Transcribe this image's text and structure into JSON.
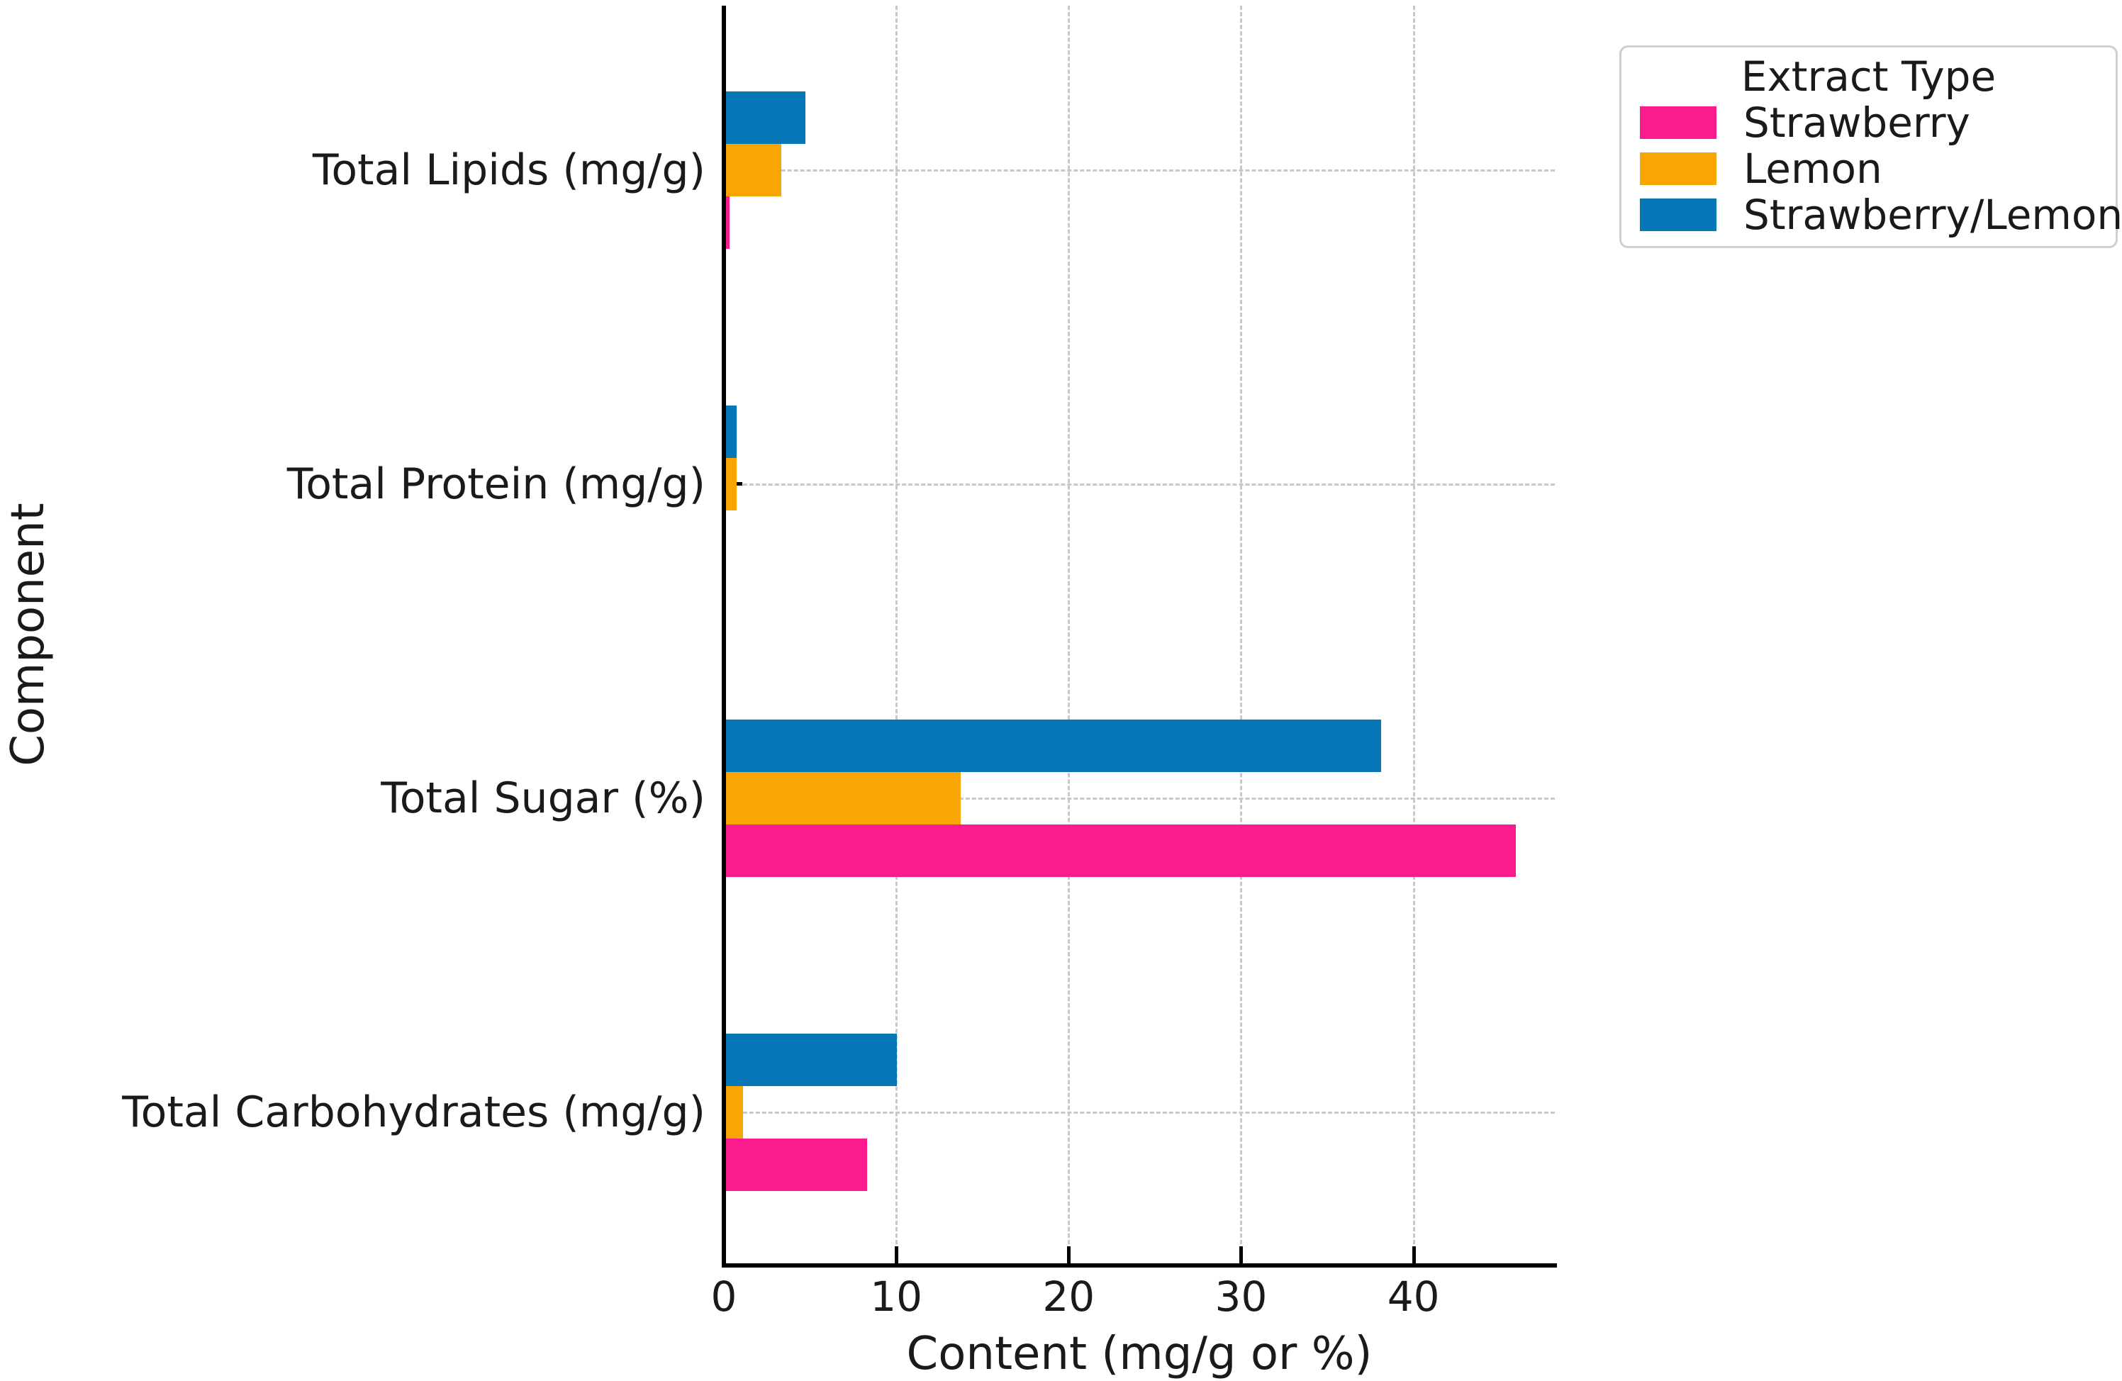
{
  "chart_data": {
    "type": "bar",
    "orientation": "horizontal",
    "title": "",
    "xlabel": "Content (mg/g or %)",
    "ylabel": "Component",
    "categories": [
      "Total Lipids (mg/g)",
      "Total Protein (mg/g)",
      "Total Sugar (%)",
      "Total Carbohydrates (mg/g)"
    ],
    "series": [
      {
        "name": "Strawberry",
        "color": "#FB1B8E",
        "values": [
          0.2,
          0.0,
          45.8,
          8.2
        ]
      },
      {
        "name": "Lemon",
        "color": "#F7A606",
        "values": [
          3.2,
          0.6,
          13.6,
          1.0
        ]
      },
      {
        "name": "Strawberry/Lemon",
        "color": "#0877B8",
        "values": [
          4.6,
          0.6,
          38.0,
          9.9
        ]
      }
    ],
    "bar_order_top_to_bottom": [
      "Strawberry/Lemon",
      "Lemon",
      "Strawberry"
    ],
    "x_ticks": [
      0,
      10,
      20,
      30,
      40
    ],
    "x_tick_labels": [
      "0",
      "10",
      "20",
      "30",
      "40"
    ],
    "xlim": [
      0,
      48.2
    ],
    "grid": "dashed",
    "legend": {
      "title": "Extract Type",
      "position": "upper right",
      "items": [
        "Strawberry",
        "Lemon",
        "Strawberry/Lemon"
      ]
    },
    "colors": {
      "strawberry": "#FB1B8E",
      "lemon": "#F7A606",
      "strawberry_lemon": "#0877B8",
      "grid": "#c8c8c8",
      "spine": "#000000",
      "text": "#1a1a1a"
    }
  }
}
